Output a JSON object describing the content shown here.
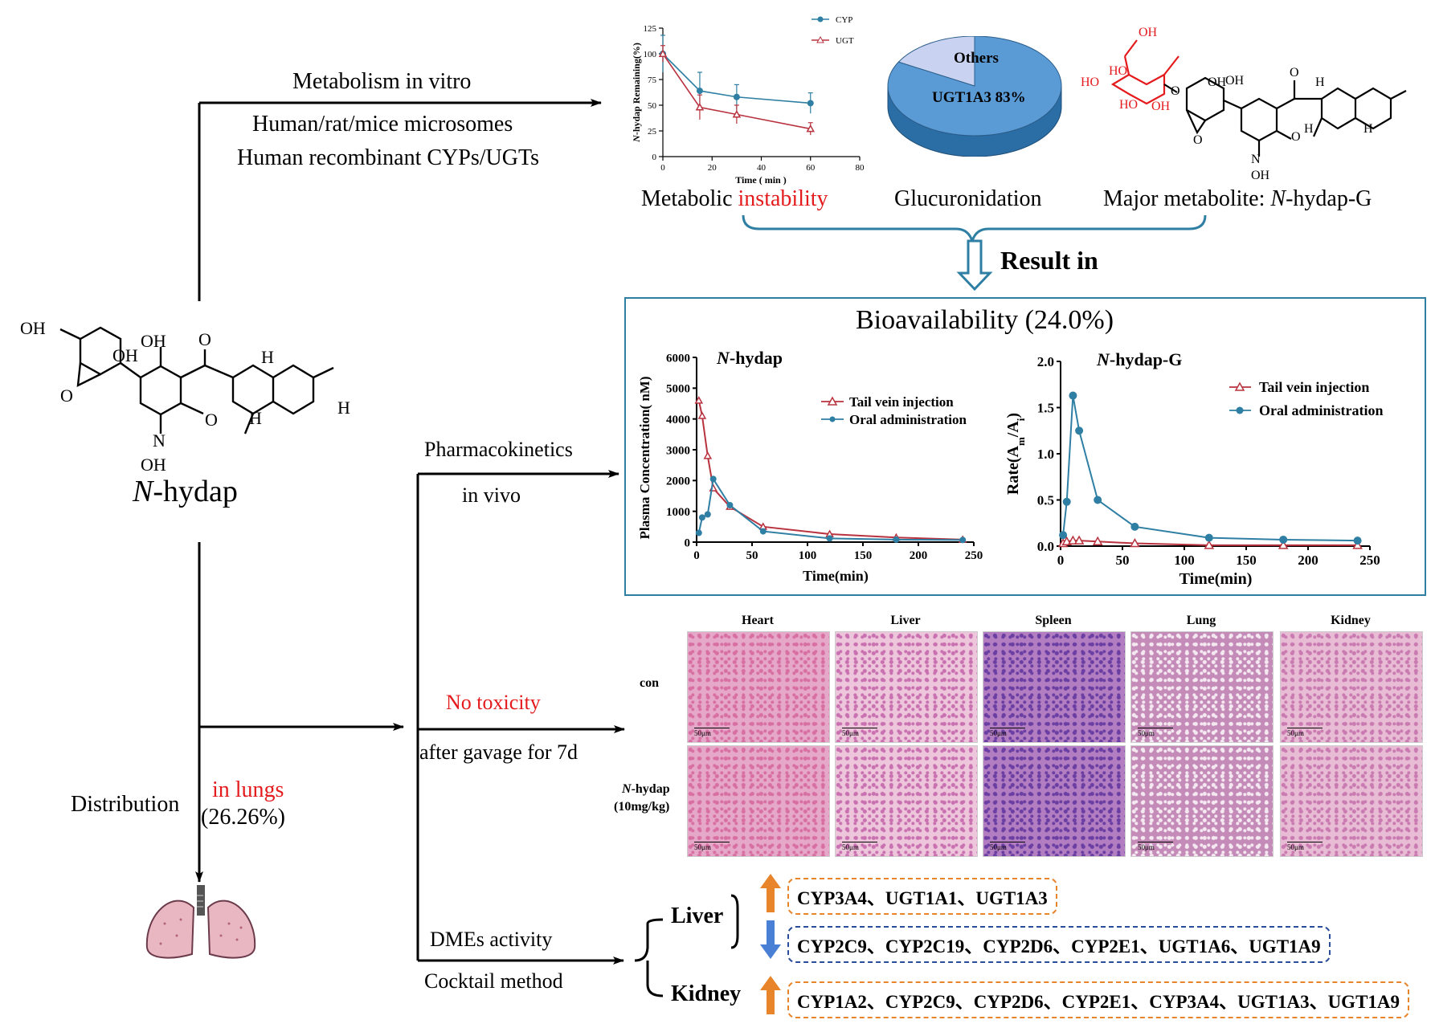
{
  "top": {
    "metabolism_title": "Metabolism in vitro",
    "line1": "Human/rat/mice microsomes",
    "line2": "Human recombinant CYPs/UGTs",
    "caption_metabolic": "Metabolic ",
    "caption_instability": "instability",
    "caption_gluc": "Glucuronidation",
    "caption_major": "Major metabolite: ",
    "caption_major_it": "N",
    "caption_major_rest": "-hydap-G",
    "result_in": "Result in"
  },
  "compound": {
    "name_it": "N",
    "name_rest": "-hydap"
  },
  "left": {
    "distribution": "Distribution",
    "in_lungs": "in lungs",
    "percent": "(26.26%)"
  },
  "branches": {
    "pk": "Pharmacokinetics",
    "pk2": "in vivo",
    "tox": "No toxicity",
    "tox2": "after gavage for 7d",
    "dme": "DMEs activity",
    "dme2": "Cocktail method"
  },
  "bioavailability": "Bioavailability (24.0%)",
  "histology": {
    "columns": [
      "Heart",
      "Liver",
      "Spleen",
      "Lung",
      "Kidney"
    ],
    "rows": [
      "con",
      "N-hydap",
      "(10mg/kg)"
    ],
    "row2_it": "N",
    "row2_rest": "-hydap",
    "scale": "50μm"
  },
  "dme": {
    "liver": "Liver",
    "kidney": "Kidney",
    "liver_up": "CYP3A4、UGT1A1、UGT1A3",
    "liver_down": "CYP2C9、CYP2C19、CYP2D6、CYP2E1、UGT1A6、UGT1A9",
    "kidney_up": "CYP1A2、CYP2C9、CYP2D6、CYP2E1、CYP3A4、UGT1A3、UGT1A9"
  },
  "colors": {
    "blue": "#2e7fa3",
    "red": "#b8333f",
    "orange": "#e8842a",
    "navy": "#2b4c9a"
  },
  "chart_data": [
    {
      "type": "line",
      "ylabel_it": "N",
      "ylabel": "-hydap Remaining(%)",
      "xlabel": "Time ( min )",
      "xlim": [
        0,
        80
      ],
      "ylim": [
        0,
        125
      ],
      "xticks": [
        0,
        20,
        40,
        60,
        80
      ],
      "yticks": [
        0,
        25,
        50,
        75,
        100,
        125
      ],
      "legend": "top-right",
      "series": [
        {
          "name": "CYP",
          "x": [
            0,
            15,
            30,
            60
          ],
          "y": [
            100,
            64,
            58,
            52
          ],
          "err": [
            18,
            18,
            12,
            10
          ]
        },
        {
          "name": "UGT",
          "x": [
            0,
            15,
            30,
            60
          ],
          "y": [
            100,
            48,
            41,
            27
          ],
          "err": [
            8,
            12,
            9,
            6
          ]
        }
      ]
    },
    {
      "type": "pie",
      "labels": [
        "UGT1A3  83%",
        "Others"
      ],
      "values": [
        83,
        17
      ]
    },
    {
      "type": "line",
      "title_it": "N",
      "title": "-hydap",
      "ylabel": "Plasma Concentration( nM)",
      "xlabel": "Time(min)",
      "xlim": [
        0,
        250
      ],
      "ylim": [
        0,
        6000
      ],
      "xticks": [
        0,
        50,
        100,
        150,
        200,
        250
      ],
      "yticks": [
        0,
        1000,
        2000,
        3000,
        4000,
        5000,
        6000
      ],
      "legend": "right",
      "series": [
        {
          "name": "Tail vein injection",
          "x": [
            2,
            5,
            10,
            15,
            30,
            60,
            120,
            180,
            240
          ],
          "y": [
            4600,
            4100,
            2800,
            1750,
            1150,
            500,
            260,
            150,
            80
          ]
        },
        {
          "name": "Oral administration",
          "x": [
            2,
            5,
            10,
            15,
            30,
            60,
            120,
            180,
            240
          ],
          "y": [
            300,
            800,
            900,
            2050,
            1200,
            350,
            120,
            80,
            70
          ]
        }
      ]
    },
    {
      "type": "line",
      "title_it": "N",
      "title": "-hydap-G",
      "ylabel": "Rate(A",
      "ylabel_sub1": "m",
      "ylabel_mid": "/A",
      "ylabel_sub2": "i",
      "ylabel_end": ")",
      "xlabel": "Time(min)",
      "xlim": [
        0,
        250
      ],
      "ylim": [
        0,
        2.0
      ],
      "xticks": [
        0,
        50,
        100,
        150,
        200,
        250
      ],
      "yticks": [
        "0.0",
        "0.5",
        "1.0",
        "1.5",
        "2.0"
      ],
      "legend": "top-right",
      "series": [
        {
          "name": "Tail vein injection",
          "x": [
            2,
            5,
            10,
            15,
            30,
            60,
            120,
            180,
            240
          ],
          "y": [
            0.03,
            0.05,
            0.06,
            0.06,
            0.05,
            0.03,
            0.01,
            0.01,
            0.01
          ]
        },
        {
          "name": "Oral administration",
          "x": [
            2,
            5,
            10,
            15,
            30,
            60,
            120,
            180,
            240
          ],
          "y": [
            0.12,
            0.48,
            1.63,
            1.25,
            0.5,
            0.21,
            0.09,
            0.07,
            0.06
          ]
        }
      ]
    }
  ]
}
